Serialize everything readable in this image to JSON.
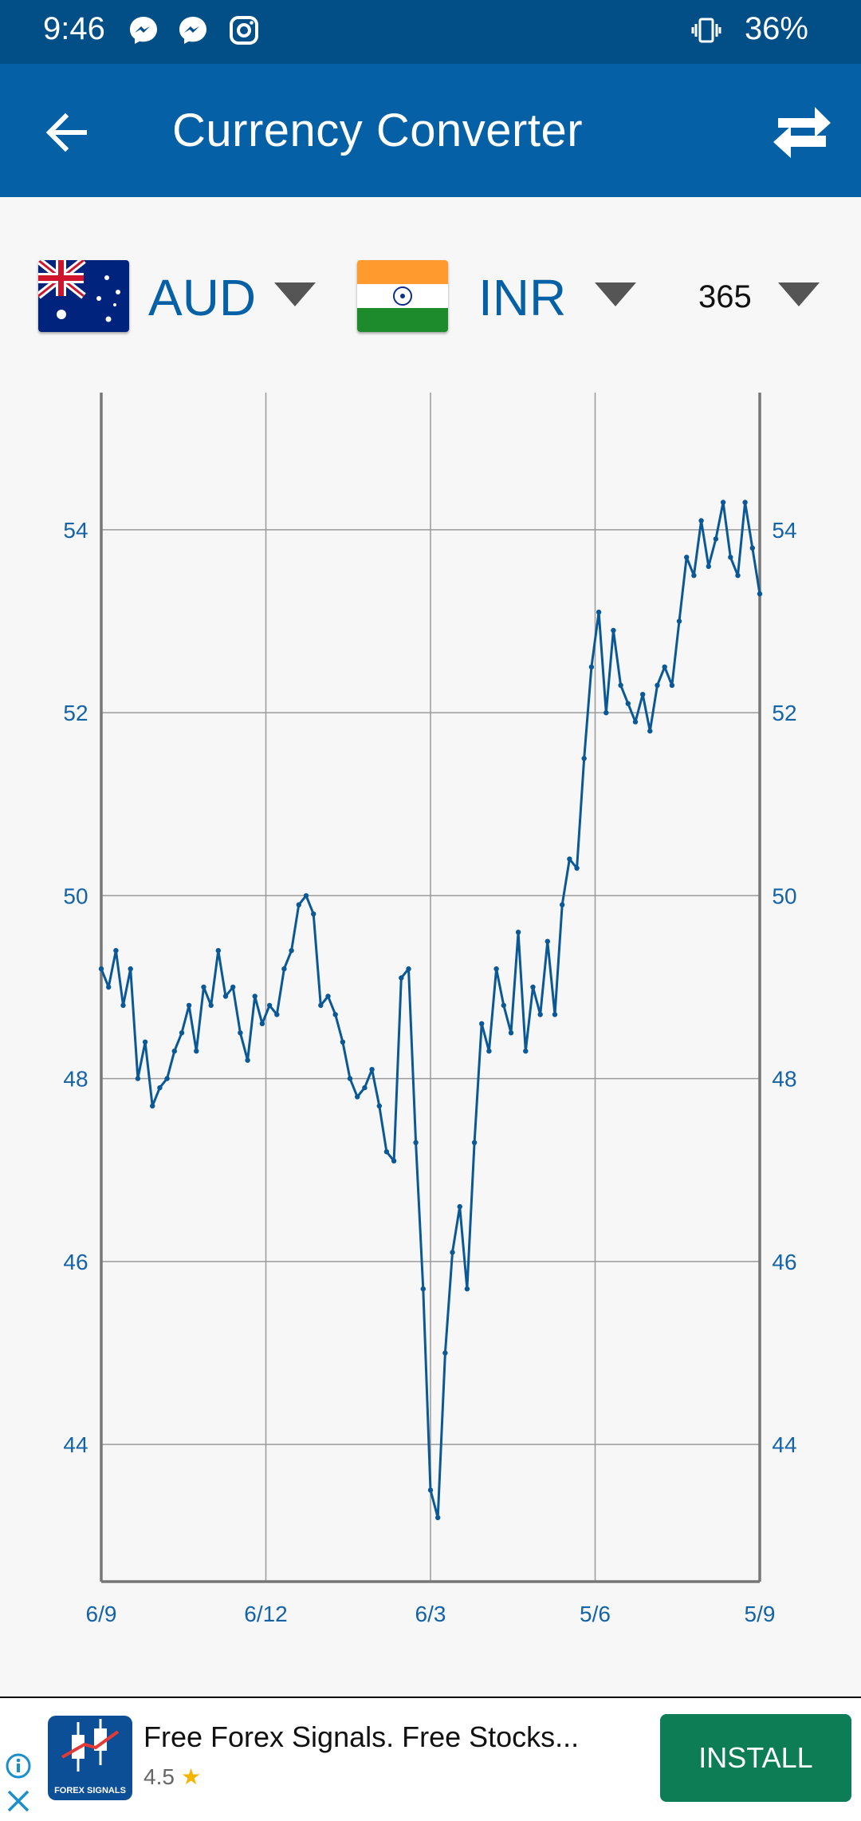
{
  "status_bar": {
    "time": "9:46",
    "battery": "36%",
    "icons": [
      "messenger-icon",
      "messenger-icon",
      "instagram-icon",
      "vibrate-icon"
    ]
  },
  "app_bar": {
    "title": "Currency Converter",
    "back_icon": "arrow-left-icon",
    "swap_icon": "swap-arrows-icon"
  },
  "selectors": {
    "from_currency": "AUD",
    "to_currency": "INR",
    "days": "365"
  },
  "colors": {
    "status_bar": "#024f87",
    "app_bar": "#0560a6",
    "line": "#0b5896",
    "label": "#1463a8",
    "install_button": "#0c7d55"
  },
  "chart_data": {
    "type": "line",
    "x_tick_labels": [
      "6/9",
      "6/12",
      "6/3",
      "5/6",
      "5/9"
    ],
    "y_ticks": [
      44,
      46,
      48,
      50,
      52,
      54
    ],
    "ylim": [
      42.5,
      55.5
    ],
    "series": [
      {
        "values": [
          49.2,
          49.0,
          49.4,
          48.8,
          49.2,
          48.0,
          48.4,
          47.7,
          47.9,
          48.0,
          48.3,
          48.5,
          48.8,
          48.3,
          49.0,
          48.8,
          49.4,
          48.9,
          49.0,
          48.5,
          48.2,
          48.9,
          48.6,
          48.8,
          48.7,
          49.2,
          49.4,
          49.9,
          50.0,
          49.8,
          48.8,
          48.9,
          48.7,
          48.4,
          48.0,
          47.8,
          47.9,
          48.1,
          47.7,
          47.2,
          47.1,
          49.1,
          49.2,
          47.3,
          45.7,
          43.5,
          43.2,
          45.0,
          46.1,
          46.6,
          45.7,
          47.3,
          48.6,
          48.3,
          49.2,
          48.8,
          48.5,
          49.6,
          48.3,
          49.0,
          48.7,
          49.5,
          48.7,
          49.9,
          50.4,
          50.3,
          51.5,
          52.5,
          53.1,
          52.0,
          52.9,
          52.3,
          52.1,
          51.9,
          52.2,
          51.8,
          52.3,
          52.5,
          52.3,
          53.0,
          53.7,
          53.5,
          54.1,
          53.6,
          53.9,
          54.3,
          53.7,
          53.5,
          54.3,
          53.8,
          53.3
        ]
      }
    ],
    "grid": true,
    "right_axis": true
  },
  "ad": {
    "headline": "Free Forex Signals. Free Stocks...",
    "rating": "4.5",
    "app_logo_text": "FOREX SIGNALS",
    "install_label": "INSTALL"
  }
}
